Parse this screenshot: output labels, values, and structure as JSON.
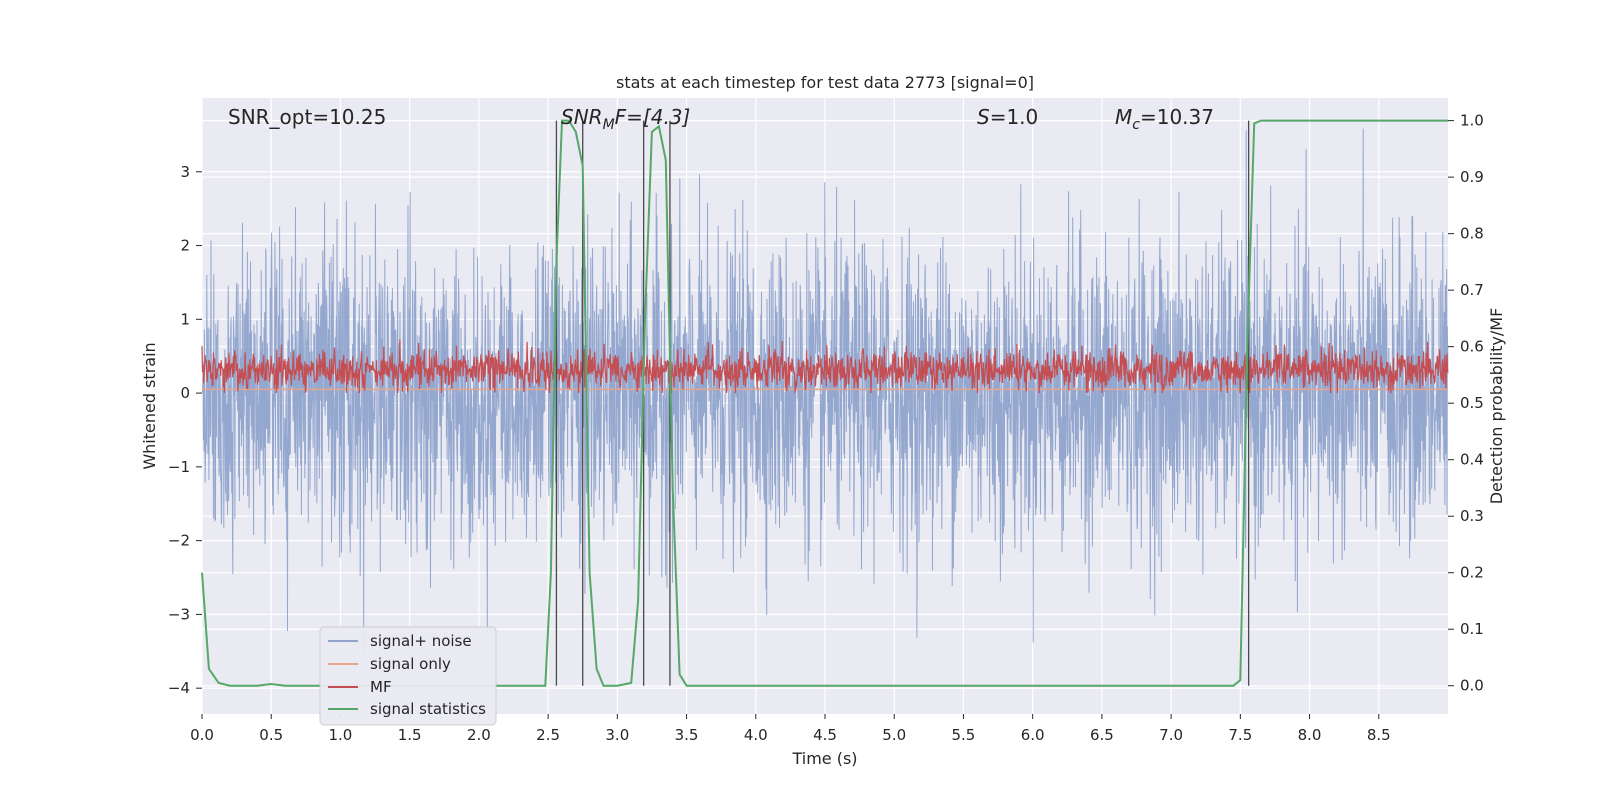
{
  "chart_data": {
    "type": "line",
    "title": "stats at each timestep for test data 2773 [signal=0]",
    "xlabel": "Time (s)",
    "ylabel_left": "Whitened strain",
    "ylabel_right": "Detection probability/MF",
    "xlim": [
      0.0,
      9.0
    ],
    "ylim_left": [
      -4.35,
      4.0
    ],
    "ylim_right": [
      -0.05,
      1.04
    ],
    "x_ticks": [
      "0.0",
      "0.5",
      "1.0",
      "1.5",
      "2.0",
      "2.5",
      "3.0",
      "3.5",
      "4.0",
      "4.5",
      "5.0",
      "5.5",
      "6.0",
      "6.5",
      "7.0",
      "7.5",
      "8.0",
      "8.5"
    ],
    "x_tick_values": [
      0.0,
      0.5,
      1.0,
      1.5,
      2.0,
      2.5,
      3.0,
      3.5,
      4.0,
      4.5,
      5.0,
      5.5,
      6.0,
      6.5,
      7.0,
      7.5,
      8.0,
      8.5
    ],
    "y_left_ticks": [
      "3",
      "2",
      "1",
      "0",
      "−1",
      "−2",
      "−3",
      "−4"
    ],
    "y_left_tick_values": [
      3,
      2,
      1,
      0,
      -1,
      -2,
      -3,
      -4
    ],
    "y_right_ticks": [
      "1.0",
      "0.9",
      "0.8",
      "0.7",
      "0.6",
      "0.5",
      "0.4",
      "0.3",
      "0.2",
      "0.1",
      "0.0"
    ],
    "y_right_tick_values": [
      1.0,
      0.9,
      0.8,
      0.7,
      0.6,
      0.5,
      0.4,
      0.3,
      0.2,
      0.1,
      0.0
    ],
    "grid": true,
    "legend_position": "lower-left",
    "annotations": {
      "snr_opt": "SNR_opt=10.25",
      "snr_mf_main": "SNR",
      "snr_mf_sub": "M",
      "snr_mf_rest": "F=[4.3]",
      "s_main": "S",
      "s_rest": "=1.0",
      "mc_main": "M",
      "mc_sub": "c",
      "mc_rest": "=10.37"
    },
    "detection_lines_x": [
      2.56,
      2.75,
      3.19,
      3.38,
      7.56
    ],
    "series": [
      {
        "name": "signal+ noise",
        "axis": "left",
        "color": "#8fa3cc",
        "description_of_values": "whitened noise, approx. Gaussian, peaks between about -4.0 and 3.6",
        "peak_max": 3.6,
        "peak_min": -4.0
      },
      {
        "name": "signal only",
        "axis": "left",
        "color": "#e8a58c",
        "constant_value": 0.05
      },
      {
        "name": "MF",
        "axis": "left",
        "color": "#c44e52",
        "range": [
          0.0,
          0.9
        ]
      },
      {
        "name": "signal statistics",
        "axis": "right",
        "color": "#55a868",
        "x": [
          0.0,
          0.05,
          0.12,
          0.2,
          0.3,
          0.4,
          0.5,
          0.6,
          1.0,
          2.0,
          2.48,
          2.52,
          2.56,
          2.6,
          2.65,
          2.7,
          2.75,
          2.8,
          2.85,
          2.9,
          3.0,
          3.1,
          3.15,
          3.2,
          3.25,
          3.3,
          3.35,
          3.4,
          3.45,
          3.5,
          3.55,
          3.6,
          4.0,
          5.0,
          6.0,
          7.0,
          7.45,
          7.5,
          7.55,
          7.6,
          7.65,
          8.0,
          8.5,
          9.0
        ],
        "values": [
          0.2,
          0.03,
          0.005,
          0.0,
          0.0,
          0.0,
          0.003,
          0.0,
          0.0,
          0.0,
          0.0,
          0.2,
          0.75,
          1.0,
          1.0,
          0.98,
          0.92,
          0.2,
          0.03,
          0.0,
          0.0,
          0.005,
          0.15,
          0.65,
          0.98,
          0.99,
          0.93,
          0.35,
          0.02,
          0.0,
          0.0,
          0.0,
          0.0,
          0.0,
          0.0,
          0.0,
          0.0,
          0.01,
          0.6,
          0.995,
          1.0,
          1.0,
          1.0,
          1.0
        ]
      }
    ],
    "legend_entries": [
      "signal+ noise",
      "signal only",
      "MF",
      "signal statistics"
    ]
  }
}
